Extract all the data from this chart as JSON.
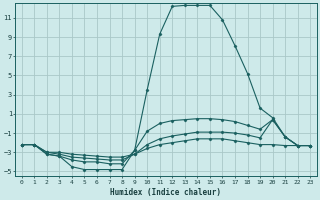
{
  "title": "",
  "xlabel": "Humidex (Indice chaleur)",
  "ylabel": "",
  "bg_color": "#ceeaea",
  "grid_color": "#aac8c8",
  "line_color": "#1a6060",
  "xlim": [
    -0.5,
    23.5
  ],
  "ylim": [
    -5.5,
    12.5
  ],
  "yticks": [
    -5,
    -3,
    -1,
    1,
    3,
    5,
    7,
    9,
    11
  ],
  "xticks": [
    0,
    1,
    2,
    3,
    4,
    5,
    6,
    7,
    8,
    9,
    10,
    11,
    12,
    13,
    14,
    15,
    16,
    17,
    18,
    19,
    20,
    21,
    22,
    23
  ],
  "series": [
    {
      "x": [
        0,
        1,
        2,
        3,
        4,
        5,
        6,
        7,
        8,
        9,
        10,
        11,
        12,
        13,
        14,
        15,
        16,
        17,
        18,
        19,
        20,
        21,
        22,
        23
      ],
      "y": [
        -2.2,
        -2.2,
        -3.2,
        -3.4,
        -4.5,
        -4.8,
        -4.8,
        -4.8,
        -4.8,
        -2.8,
        3.5,
        9.3,
        12.2,
        12.3,
        12.3,
        12.3,
        10.8,
        8.1,
        5.2,
        1.6,
        0.6,
        -1.4,
        -2.3,
        -2.3
      ]
    },
    {
      "x": [
        0,
        1,
        2,
        3,
        4,
        5,
        6,
        7,
        8,
        9,
        10,
        11,
        12,
        13,
        14,
        15,
        16,
        17,
        18,
        19,
        20,
        21,
        22,
        23
      ],
      "y": [
        -2.2,
        -2.2,
        -3.2,
        -3.4,
        -3.8,
        -4.0,
        -4.0,
        -4.2,
        -4.2,
        -2.8,
        -0.8,
        0.0,
        0.3,
        0.4,
        0.5,
        0.5,
        0.4,
        0.2,
        -0.2,
        -0.6,
        0.4,
        -1.4,
        -2.3,
        -2.3
      ]
    },
    {
      "x": [
        0,
        1,
        2,
        3,
        4,
        5,
        6,
        7,
        8,
        9,
        10,
        11,
        12,
        13,
        14,
        15,
        16,
        17,
        18,
        19,
        20,
        21,
        22,
        23
      ],
      "y": [
        -2.2,
        -2.2,
        -3.0,
        -3.2,
        -3.5,
        -3.6,
        -3.7,
        -3.8,
        -3.8,
        -3.2,
        -2.2,
        -1.6,
        -1.3,
        -1.1,
        -0.9,
        -0.9,
        -0.9,
        -1.0,
        -1.2,
        -1.5,
        0.4,
        -1.4,
        -2.3,
        -2.3
      ]
    },
    {
      "x": [
        0,
        1,
        2,
        3,
        4,
        5,
        6,
        7,
        8,
        9,
        10,
        11,
        12,
        13,
        14,
        15,
        16,
        17,
        18,
        19,
        20,
        21,
        22,
        23
      ],
      "y": [
        -2.2,
        -2.2,
        -3.0,
        -3.0,
        -3.2,
        -3.3,
        -3.4,
        -3.5,
        -3.5,
        -3.2,
        -2.6,
        -2.2,
        -2.0,
        -1.8,
        -1.6,
        -1.6,
        -1.6,
        -1.8,
        -2.0,
        -2.2,
        -2.2,
        -2.3,
        -2.3,
        -2.3
      ]
    }
  ]
}
